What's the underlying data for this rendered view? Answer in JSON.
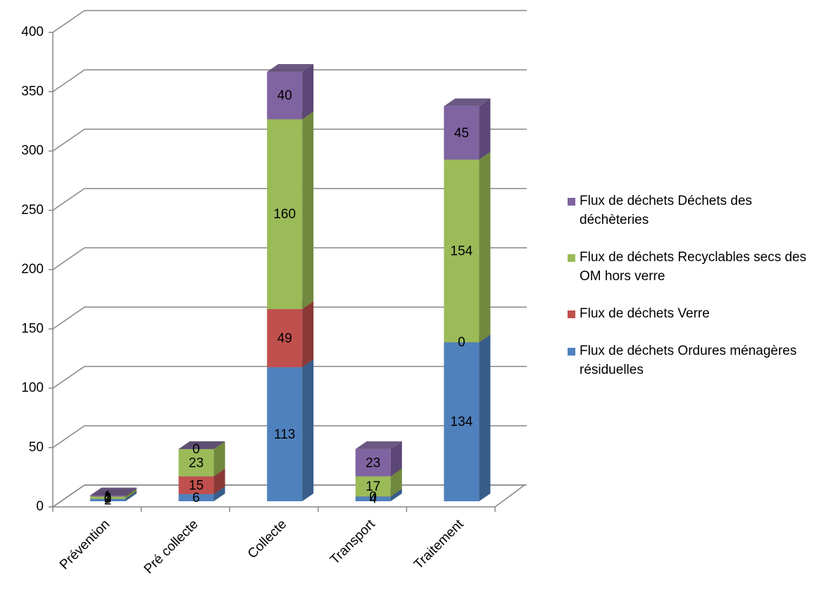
{
  "chart_data": {
    "type": "bar3d-stacked",
    "categories": [
      "Prévention",
      "Pré collecte",
      "Collecte",
      "Transport",
      "Traitement"
    ],
    "series": [
      {
        "name": "Flux de déchets Ordures ménagères résiduelles",
        "color": "#4f81bd",
        "side": "#385d8a",
        "values": [
          2,
          6,
          113,
          4,
          134
        ]
      },
      {
        "name": "Flux de déchets Verre",
        "color": "#c0504d",
        "side": "#8c3836",
        "values": [
          0,
          15,
          49,
          0,
          0
        ]
      },
      {
        "name": "Flux de déchets Recyclables secs des OM hors verre",
        "color": "#9bbb59",
        "side": "#71893f",
        "values": [
          2,
          23,
          160,
          17,
          154
        ]
      },
      {
        "name": "Flux de déchets Déchets des déchèteries",
        "color": "#8064a2",
        "side": "#5c4776",
        "values": [
          1,
          0,
          40,
          23,
          45
        ]
      }
    ],
    "ylim": [
      0,
      400
    ],
    "yticks": [
      0,
      50,
      100,
      150,
      200,
      250,
      300,
      350,
      400
    ],
    "grid": true,
    "legend": "right"
  }
}
